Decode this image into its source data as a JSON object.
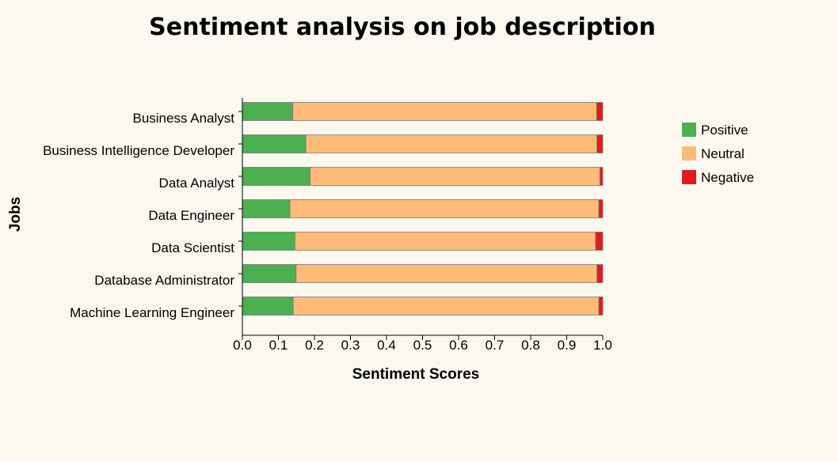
{
  "chart_data": {
    "type": "bar",
    "orientation": "horizontal",
    "stacked": true,
    "title": "Sentiment analysis on job description",
    "xlabel": "Sentiment Scores",
    "ylabel": "Jobs",
    "xlim": [
      0,
      1
    ],
    "xticks": [
      "0.0",
      "0.1",
      "0.2",
      "0.3",
      "0.4",
      "0.5",
      "0.6",
      "0.7",
      "0.8",
      "0.9",
      "1.0"
    ],
    "grid": false,
    "legend_position": "right",
    "categories": [
      "Business Analyst",
      "Business Intelligence Developer",
      "Data Analyst",
      "Data Engineer",
      "Data Scientist",
      "Database Administrator",
      "Machine Learning Engineer"
    ],
    "series": [
      {
        "name": "Positive",
        "color": "#4caf50",
        "values": [
          0.14,
          0.176,
          0.188,
          0.132,
          0.146,
          0.149,
          0.141
        ]
      },
      {
        "name": "Neutral",
        "color": "#ffbb78",
        "values": [
          0.843,
          0.808,
          0.804,
          0.857,
          0.834,
          0.835,
          0.848
        ]
      },
      {
        "name": "Negative",
        "color": "#e31a1c",
        "values": [
          0.017,
          0.016,
          0.008,
          0.011,
          0.02,
          0.016,
          0.011
        ]
      }
    ]
  }
}
